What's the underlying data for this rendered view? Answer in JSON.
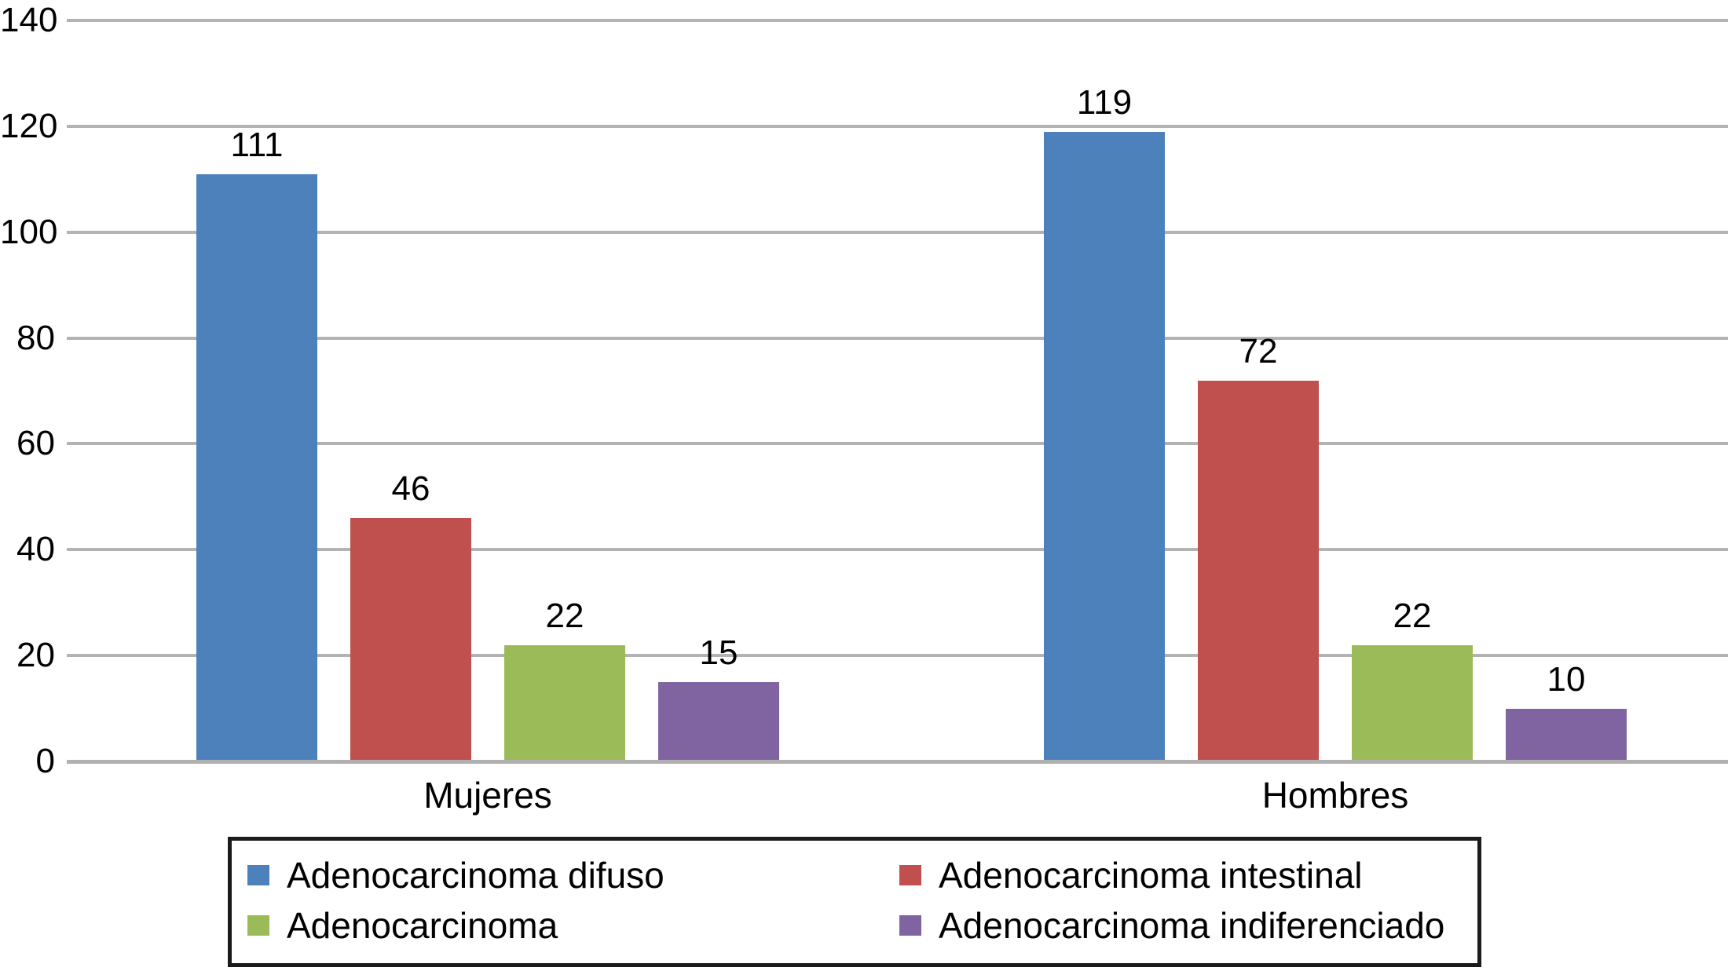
{
  "chart_data": {
    "type": "bar",
    "title": "",
    "xlabel": "",
    "ylabel": "",
    "categories": [
      "Mujeres",
      "Hombres"
    ],
    "series": [
      {
        "name": "Adenocarcinoma difuso",
        "color": "#4d81bc",
        "values": [
          111,
          119
        ]
      },
      {
        "name": "Adenocarcinoma intestinal",
        "color": "#c0504d",
        "values": [
          46,
          72
        ]
      },
      {
        "name": "Adenocarcinoma",
        "color": "#9bbb59",
        "values": [
          22,
          22
        ]
      },
      {
        "name": "Adenocarcinoma indiferenciado",
        "color": "#8064a2",
        "values": [
          15,
          10
        ]
      }
    ],
    "y_axis": {
      "min": 0,
      "max": 140,
      "tick_step": 20,
      "ticks": [
        0,
        20,
        40,
        60,
        80,
        100,
        120,
        140
      ]
    },
    "grid": true,
    "bar_value_labels": true,
    "legend_position": "bottom"
  },
  "colors": {
    "background": "#ffffff",
    "gridline": "#b3b3b3",
    "axis_line": "#b0b0b0",
    "text": "#000000",
    "legend_border": "#1a1a1a"
  }
}
